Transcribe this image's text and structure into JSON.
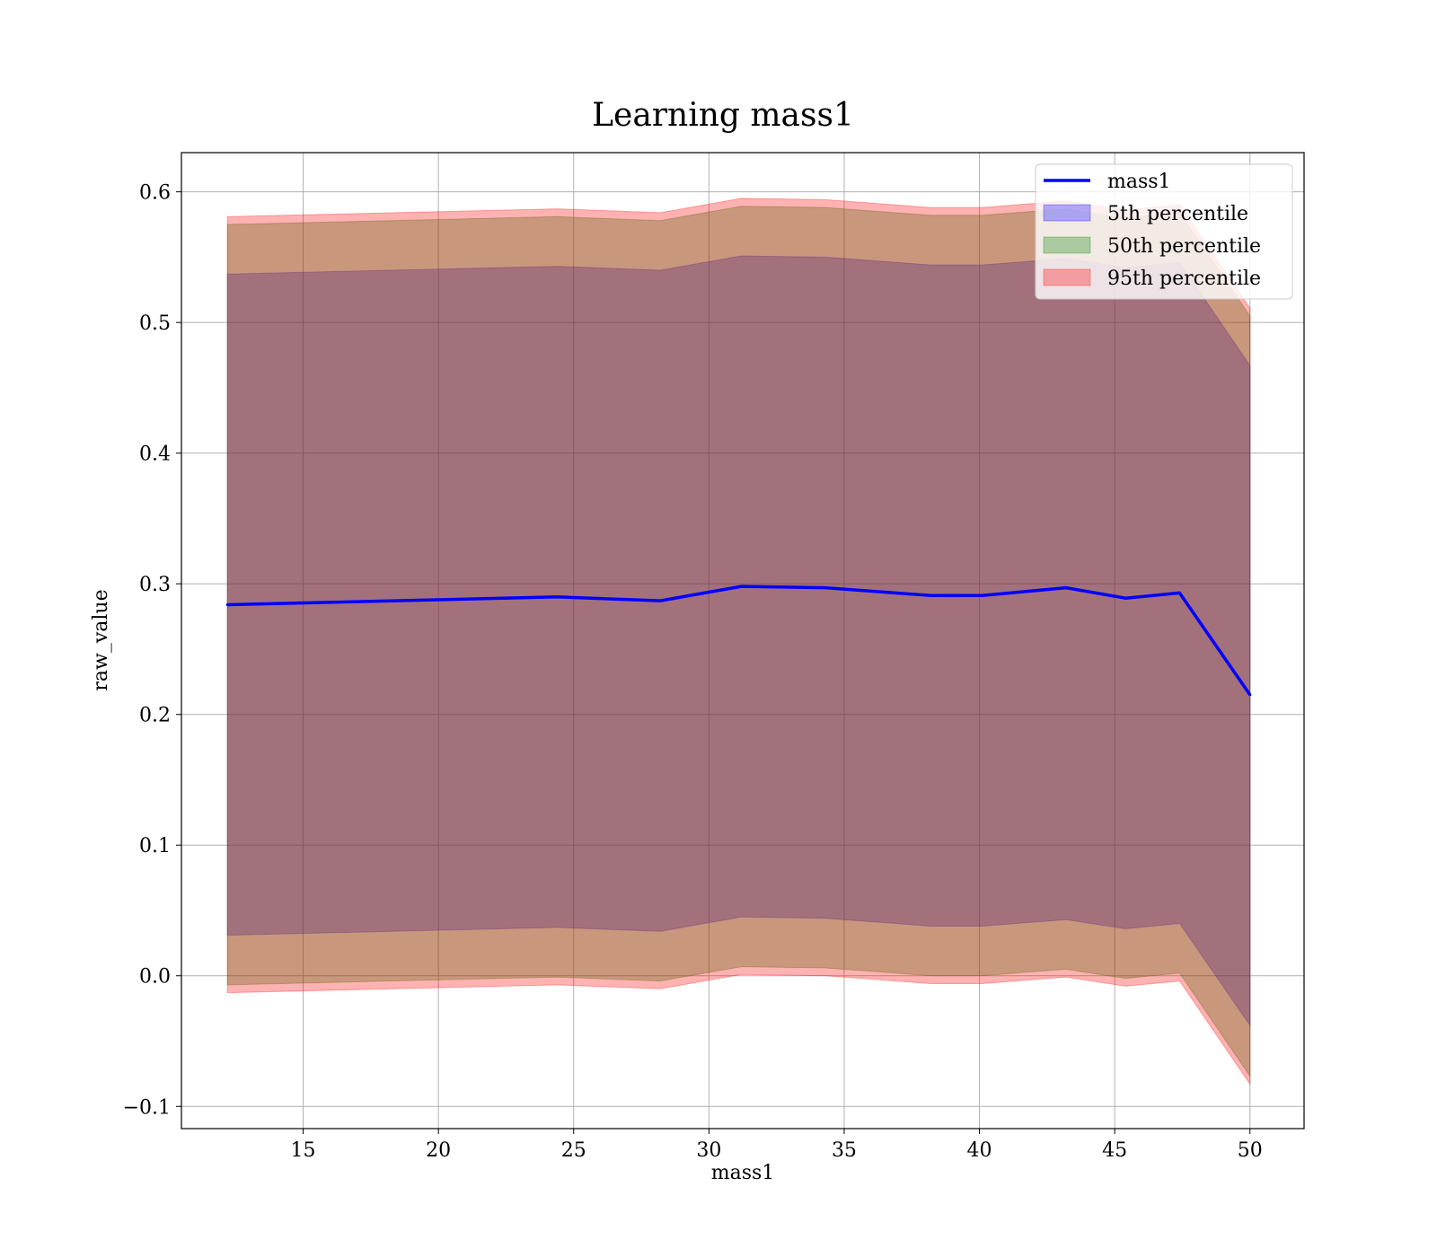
{
  "chart_data": {
    "type": "area",
    "title": "Learning mass1",
    "xlabel": "mass1",
    "ylabel": "raw_value",
    "xlim": [
      10.5,
      52
    ],
    "ylim": [
      -0.117,
      0.63
    ],
    "xticks": [
      15,
      20,
      25,
      30,
      35,
      40,
      45,
      50
    ],
    "yticks": [
      -0.1,
      0.0,
      0.1,
      0.2,
      0.3,
      0.4,
      0.5,
      0.6
    ],
    "ytick_labels": [
      "−0.1",
      "0.0",
      "0.1",
      "0.2",
      "0.3",
      "0.4",
      "0.5",
      "0.6"
    ],
    "grid": true,
    "legend_position": "top-right",
    "x": [
      12.2,
      24.4,
      28.2,
      31.2,
      34.3,
      38.2,
      40.1,
      43.2,
      45.4,
      47.4,
      50.0
    ],
    "line": {
      "name": "mass1",
      "color": "#0000ff",
      "values": [
        0.284,
        0.29,
        0.287,
        0.298,
        0.297,
        0.291,
        0.291,
        0.297,
        0.289,
        0.293,
        0.215
      ]
    },
    "bands": [
      {
        "name": "5th percentile",
        "fill": "#0000ff",
        "opacity": 0.3,
        "lower": [
          0.031,
          0.037,
          0.034,
          0.045,
          0.044,
          0.038,
          0.038,
          0.043,
          0.036,
          0.04,
          -0.038
        ],
        "upper": [
          0.537,
          0.543,
          0.54,
          0.551,
          0.55,
          0.544,
          0.544,
          0.549,
          0.542,
          0.546,
          0.467
        ]
      },
      {
        "name": "50th percentile",
        "fill": "#008000",
        "opacity": 0.3,
        "lower": [
          -0.007,
          -0.001,
          -0.004,
          0.007,
          0.006,
          0.0,
          0.0,
          0.005,
          -0.002,
          0.002,
          -0.077
        ],
        "upper": [
          0.575,
          0.581,
          0.578,
          0.589,
          0.588,
          0.582,
          0.582,
          0.587,
          0.58,
          0.584,
          0.505
        ]
      },
      {
        "name": "95th percentile",
        "fill": "#ff0000",
        "opacity": 0.3,
        "lower": [
          -0.013,
          -0.007,
          -0.01,
          0.001,
          0.0,
          -0.006,
          -0.006,
          -0.001,
          -0.008,
          -0.004,
          -0.083
        ],
        "upper": [
          0.581,
          0.587,
          0.584,
          0.595,
          0.594,
          0.588,
          0.588,
          0.593,
          0.586,
          0.59,
          0.511
        ]
      }
    ]
  }
}
